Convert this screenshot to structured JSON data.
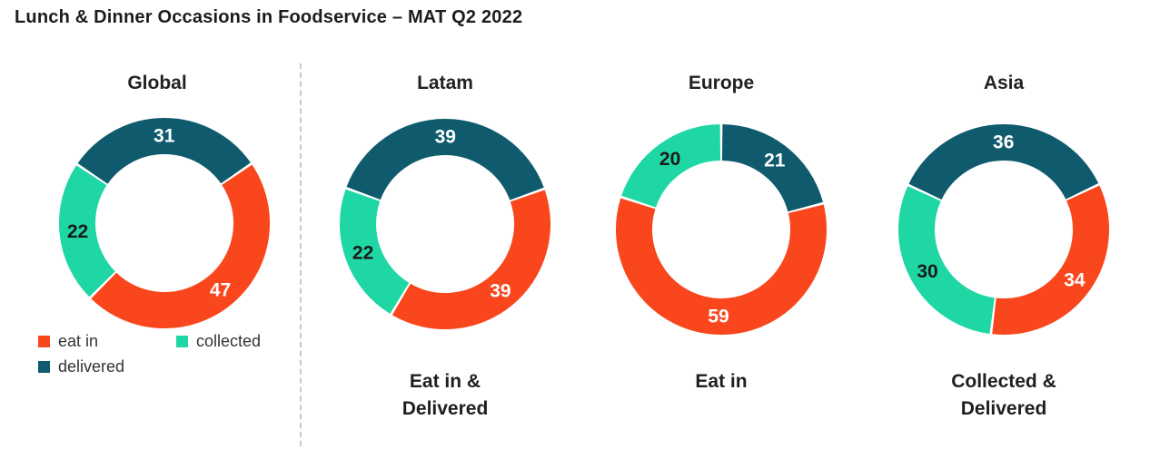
{
  "title": "Lunch & Dinner Occasions in Foodservice – MAT Q2 2022",
  "legend": {
    "items": [
      {
        "label": "eat in",
        "color": "#F9461C"
      },
      {
        "label": "collected",
        "color": "#1FD6A5"
      },
      {
        "label": "delivered",
        "color": "#0F5B6D"
      }
    ]
  },
  "chart_data": [
    {
      "type": "donut",
      "title": "Global",
      "caption": [],
      "start_angle": -56,
      "segments": [
        {
          "label": "delivered",
          "value": 31,
          "color": "#0F5B6D",
          "label_color": "#ffffff"
        },
        {
          "label": "eat in",
          "value": 47,
          "color": "#F9461C",
          "label_color": "#ffffff"
        },
        {
          "label": "collected",
          "value": 22,
          "color": "#1FD6A5",
          "label_color": "#1a1a1a"
        }
      ]
    },
    {
      "type": "donut",
      "title": "Latam",
      "caption": [
        "Eat in &",
        "Delivered"
      ],
      "start_angle": -70,
      "segments": [
        {
          "label": "delivered",
          "value": 39,
          "color": "#0F5B6D",
          "label_color": "#ffffff"
        },
        {
          "label": "eat in",
          "value": 39,
          "color": "#F9461C",
          "label_color": "#ffffff"
        },
        {
          "label": "collected",
          "value": 22,
          "color": "#1FD6A5",
          "label_color": "#1a1a1a"
        }
      ]
    },
    {
      "type": "donut",
      "title": "Europe",
      "caption": [
        "Eat in"
      ],
      "start_angle": 0,
      "segments": [
        {
          "label": "delivered",
          "value": 21,
          "color": "#0F5B6D",
          "label_color": "#ffffff"
        },
        {
          "label": "eat in",
          "value": 59,
          "color": "#F9461C",
          "label_color": "#ffffff"
        },
        {
          "label": "collected",
          "value": 20,
          "color": "#1FD6A5",
          "label_color": "#1a1a1a"
        }
      ]
    },
    {
      "type": "donut",
      "title": "Asia",
      "caption": [
        "Collected &",
        "Delivered"
      ],
      "start_angle": -65,
      "segments": [
        {
          "label": "delivered",
          "value": 36,
          "color": "#0F5B6D",
          "label_color": "#ffffff"
        },
        {
          "label": "eat in",
          "value": 34,
          "color": "#F9461C",
          "label_color": "#ffffff"
        },
        {
          "label": "collected",
          "value": 30,
          "color": "#1FD6A5",
          "label_color": "#1a1a1a"
        }
      ]
    }
  ]
}
